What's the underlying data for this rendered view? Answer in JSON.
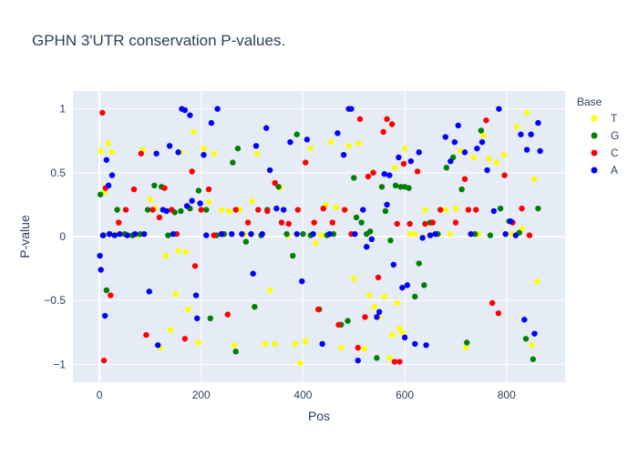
{
  "chart_data": {
    "type": "scatter",
    "title": "GPHN 3'UTR conservation P-values.",
    "xlabel": "Pos",
    "ylabel": "P-value",
    "xlim": [
      -52,
      915
    ],
    "ylim": [
      -1.14,
      1.14
    ],
    "x_ticks": [
      0,
      200,
      400,
      600,
      800
    ],
    "y_ticks": [
      -1,
      -0.5,
      0,
      0.5,
      1
    ],
    "x_tick_labels": [
      "0",
      "200",
      "400",
      "600",
      "800"
    ],
    "y_tick_labels": [
      "−1",
      "−0.5",
      "0",
      "0.5",
      "1"
    ],
    "grid": true,
    "legend_title": "Base",
    "legend_position": "top-right",
    "series": [
      {
        "name": "T",
        "color": "#ffff00",
        "points": [
          [
            3,
            0.67
          ],
          [
            10,
            0.35
          ],
          [
            18,
            0.73
          ],
          [
            24,
            0.66
          ],
          [
            32,
            0.02
          ],
          [
            45,
            0.02
          ],
          [
            60,
            0.01
          ],
          [
            75,
            0.01
          ],
          [
            85,
            0.68
          ],
          [
            100,
            0.29
          ],
          [
            110,
            0.22
          ],
          [
            120,
            -0.87
          ],
          [
            130,
            -0.15
          ],
          [
            140,
            -0.73
          ],
          [
            150,
            -0.45
          ],
          [
            155,
            -0.11
          ],
          [
            160,
            0.66
          ],
          [
            170,
            -0.12
          ],
          [
            175,
            -0.57
          ],
          [
            185,
            0.82
          ],
          [
            195,
            -0.83
          ],
          [
            205,
            0.69
          ],
          [
            215,
            0.27
          ],
          [
            225,
            0.65
          ],
          [
            240,
            0.21
          ],
          [
            255,
            0.2
          ],
          [
            265,
            -0.85
          ],
          [
            275,
            0.21
          ],
          [
            285,
            0.02
          ],
          [
            300,
            0.28
          ],
          [
            310,
            0.65
          ],
          [
            325,
            -0.84
          ],
          [
            335,
            -0.42
          ],
          [
            345,
            -0.84
          ],
          [
            355,
            0.38
          ],
          [
            370,
            0.01
          ],
          [
            385,
            -0.84
          ],
          [
            395,
            -0.99
          ],
          [
            405,
            -0.82
          ],
          [
            415,
            0.69
          ],
          [
            425,
            -0.05
          ],
          [
            435,
            0.01
          ],
          [
            445,
            0.25
          ],
          [
            455,
            0.74
          ],
          [
            465,
            0.23
          ],
          [
            475,
            -0.87
          ],
          [
            490,
            0.71
          ],
          [
            500,
            -0.33
          ],
          [
            510,
            0.73
          ],
          [
            520,
            -0.88
          ],
          [
            530,
            -0.46
          ],
          [
            540,
            -0.55
          ],
          [
            550,
            -0.63
          ],
          [
            560,
            -0.47
          ],
          [
            570,
            -0.95
          ],
          [
            575,
            -0.77
          ],
          [
            580,
            0.54
          ],
          [
            585,
            -0.52
          ],
          [
            590,
            -0.72
          ],
          [
            595,
            -0.75
          ],
          [
            600,
            0.69
          ],
          [
            610,
            0.02
          ],
          [
            620,
            0.02
          ],
          [
            640,
            0.21
          ],
          [
            660,
            0.02
          ],
          [
            680,
            0.21
          ],
          [
            690,
            0.02
          ],
          [
            700,
            0.22
          ],
          [
            710,
            0.67
          ],
          [
            720,
            -0.87
          ],
          [
            735,
            0.62
          ],
          [
            745,
            0.02
          ],
          [
            755,
            0.79
          ],
          [
            765,
            0.61
          ],
          [
            780,
            0.58
          ],
          [
            795,
            0.64
          ],
          [
            810,
            0.02
          ],
          [
            820,
            0.86
          ],
          [
            830,
            0.06
          ],
          [
            840,
            0.97
          ],
          [
            850,
            -0.85
          ],
          [
            855,
            0.45
          ],
          [
            860,
            -0.35
          ]
        ]
      },
      {
        "name": "G",
        "color": "#008000",
        "points": [
          [
            2,
            0.33
          ],
          [
            8,
            0.01
          ],
          [
            14,
            -0.42
          ],
          [
            20,
            0.02
          ],
          [
            35,
            0.21
          ],
          [
            50,
            0.02
          ],
          [
            65,
            0.01
          ],
          [
            80,
            0.02
          ],
          [
            95,
            0.21
          ],
          [
            108,
            0.4
          ],
          [
            122,
            0.39
          ],
          [
            135,
            0.01
          ],
          [
            148,
            0.19
          ],
          [
            160,
            0.2
          ],
          [
            178,
            0.22
          ],
          [
            195,
            0.36
          ],
          [
            210,
            0.21
          ],
          [
            218,
            -0.64
          ],
          [
            230,
            0.01
          ],
          [
            245,
            0.02
          ],
          [
            262,
            0.58
          ],
          [
            268,
            -0.9
          ],
          [
            272,
            0.69
          ],
          [
            288,
            -0.04
          ],
          [
            305,
            -0.55
          ],
          [
            318,
            0.01
          ],
          [
            330,
            0.21
          ],
          [
            352,
            0.39
          ],
          [
            368,
            0.02
          ],
          [
            380,
            -0.15
          ],
          [
            388,
            0.8
          ],
          [
            400,
            0.02
          ],
          [
            415,
            0.01
          ],
          [
            432,
            -0.57
          ],
          [
            447,
            0.01
          ],
          [
            460,
            0.02
          ],
          [
            475,
            -0.69
          ],
          [
            488,
            -0.66
          ],
          [
            500,
            0.46
          ],
          [
            505,
            0.15
          ],
          [
            515,
            0.11
          ],
          [
            525,
            0.02
          ],
          [
            532,
            0.04
          ],
          [
            545,
            -0.95
          ],
          [
            555,
            0.39
          ],
          [
            562,
            0.2
          ],
          [
            572,
            -0.03
          ],
          [
            582,
            0.4
          ],
          [
            592,
            0.39
          ],
          [
            600,
            0.39
          ],
          [
            608,
            0.38
          ],
          [
            620,
            -0.47
          ],
          [
            628,
            -0.21
          ],
          [
            638,
            -0.38
          ],
          [
            650,
            0.11
          ],
          [
            665,
            0.02
          ],
          [
            682,
            0.54
          ],
          [
            695,
            0.62
          ],
          [
            712,
            0.37
          ],
          [
            722,
            -0.83
          ],
          [
            738,
            0.02
          ],
          [
            750,
            0.83
          ],
          [
            768,
            0.01
          ],
          [
            788,
            0.22
          ],
          [
            805,
            0.12
          ],
          [
            825,
            0.03
          ],
          [
            838,
            -0.8
          ],
          [
            852,
            -0.96
          ],
          [
            862,
            0.22
          ]
        ]
      },
      {
        "name": "C",
        "color": "#ff0000",
        "points": [
          [
            6,
            0.97
          ],
          [
            9,
            -0.97
          ],
          [
            12,
            0.38
          ],
          [
            22,
            -0.46
          ],
          [
            38,
            0.11
          ],
          [
            52,
            0.21
          ],
          [
            68,
            0.37
          ],
          [
            82,
            0.65
          ],
          [
            92,
            -0.77
          ],
          [
            105,
            0.21
          ],
          [
            118,
            0.15
          ],
          [
            128,
            0.38
          ],
          [
            142,
            0.21
          ],
          [
            152,
            0.02
          ],
          [
            168,
            -0.8
          ],
          [
            182,
            0.51
          ],
          [
            188,
            -0.23
          ],
          [
            200,
            0.21
          ],
          [
            215,
            0.37
          ],
          [
            225,
            0.01
          ],
          [
            240,
            0.02
          ],
          [
            252,
            -0.61
          ],
          [
            268,
            0.21
          ],
          [
            292,
            0.11
          ],
          [
            312,
            0.21
          ],
          [
            330,
            0.2
          ],
          [
            345,
            0.42
          ],
          [
            358,
            0.11
          ],
          [
            372,
            0.1
          ],
          [
            390,
            0.21
          ],
          [
            405,
            0.58
          ],
          [
            422,
            0.11
          ],
          [
            430,
            -0.57
          ],
          [
            440,
            0.22
          ],
          [
            458,
            0.11
          ],
          [
            470,
            -0.69
          ],
          [
            482,
            0.21
          ],
          [
            495,
            0.02
          ],
          [
            508,
            -0.87
          ],
          [
            512,
            0.92
          ],
          [
            522,
            -0.63
          ],
          [
            528,
            0.47
          ],
          [
            538,
            0.5
          ],
          [
            548,
            -0.32
          ],
          [
            558,
            0.82
          ],
          [
            565,
            0.92
          ],
          [
            575,
            0.88
          ],
          [
            580,
            -0.98
          ],
          [
            585,
            0.1
          ],
          [
            590,
            -0.98
          ],
          [
            598,
            0.57
          ],
          [
            610,
            0.1
          ],
          [
            625,
            0.51
          ],
          [
            640,
            0.1
          ],
          [
            655,
            0.11
          ],
          [
            670,
            0.21
          ],
          [
            700,
            0.11
          ],
          [
            718,
            0.45
          ],
          [
            725,
            0.21
          ],
          [
            740,
            0.21
          ],
          [
            760,
            0.91
          ],
          [
            772,
            -0.52
          ],
          [
            784,
            -0.6
          ],
          [
            796,
            0.48
          ],
          [
            812,
            0.11
          ],
          [
            830,
            0.22
          ],
          [
            845,
            0.01
          ]
        ]
      },
      {
        "name": "A",
        "color": "#0000ff",
        "points": [
          [
            1,
            -0.15
          ],
          [
            3,
            -0.26
          ],
          [
            7,
            0.01
          ],
          [
            11,
            -0.62
          ],
          [
            14,
            0.6
          ],
          [
            18,
            0.4
          ],
          [
            20,
            0.02
          ],
          [
            25,
            0.48
          ],
          [
            30,
            0.01
          ],
          [
            40,
            0.02
          ],
          [
            55,
            0.01
          ],
          [
            70,
            0.02
          ],
          [
            88,
            0.02
          ],
          [
            98,
            -0.43
          ],
          [
            112,
            0.65
          ],
          [
            115,
            -0.85
          ],
          [
            125,
            0.21
          ],
          [
            132,
            0.2
          ],
          [
            138,
            0.71
          ],
          [
            145,
            0.02
          ],
          [
            155,
            0.66
          ],
          [
            162,
            1.0
          ],
          [
            168,
            0.99
          ],
          [
            172,
            0.24
          ],
          [
            178,
            0.95
          ],
          [
            182,
            0.28
          ],
          [
            190,
            -0.46
          ],
          [
            192,
            -0.64
          ],
          [
            198,
            0.26
          ],
          [
            205,
            0.64
          ],
          [
            210,
            0.01
          ],
          [
            220,
            0.89
          ],
          [
            232,
            1.0
          ],
          [
            240,
            0.02
          ],
          [
            260,
            0.02
          ],
          [
            280,
            0.02
          ],
          [
            298,
            0.02
          ],
          [
            302,
            -0.29
          ],
          [
            308,
            0.71
          ],
          [
            320,
            0.02
          ],
          [
            328,
            0.85
          ],
          [
            335,
            0.52
          ],
          [
            348,
            0.22
          ],
          [
            362,
            0.21
          ],
          [
            375,
            0.74
          ],
          [
            388,
            0.02
          ],
          [
            398,
            -0.35
          ],
          [
            408,
            0.76
          ],
          [
            420,
            0.02
          ],
          [
            438,
            -0.84
          ],
          [
            452,
            0.02
          ],
          [
            468,
            0.81
          ],
          [
            480,
            0.64
          ],
          [
            490,
            1.0
          ],
          [
            495,
            1.0
          ],
          [
            502,
            0.02
          ],
          [
            508,
            -0.97
          ],
          [
            518,
            0.21
          ],
          [
            525,
            -0.08
          ],
          [
            535,
            -0.02
          ],
          [
            545,
            -0.63
          ],
          [
            550,
            -0.59
          ],
          [
            560,
            0.49
          ],
          [
            565,
            0.25
          ],
          [
            570,
            0.48
          ],
          [
            578,
            -0.22
          ],
          [
            588,
            0.62
          ],
          [
            595,
            -0.4
          ],
          [
            600,
            -0.79
          ],
          [
            605,
            -0.38
          ],
          [
            612,
            0.59
          ],
          [
            620,
            -0.84
          ],
          [
            628,
            0.66
          ],
          [
            635,
            -0.01
          ],
          [
            642,
            -0.85
          ],
          [
            650,
            0.01
          ],
          [
            660,
            0.02
          ],
          [
            680,
            0.78
          ],
          [
            690,
            0.59
          ],
          [
            698,
            0.74
          ],
          [
            705,
            0.87
          ],
          [
            718,
            0.66
          ],
          [
            730,
            0.02
          ],
          [
            742,
            0.69
          ],
          [
            752,
            0.74
          ],
          [
            762,
            0.52
          ],
          [
            775,
            0.2
          ],
          [
            785,
            1.0
          ],
          [
            798,
            0.02
          ],
          [
            808,
            0.12
          ],
          [
            818,
            0.01
          ],
          [
            828,
            0.8
          ],
          [
            835,
            -0.65
          ],
          [
            840,
            0.68
          ],
          [
            848,
            0.8
          ],
          [
            855,
            -0.76
          ],
          [
            862,
            0.89
          ],
          [
            866,
            0.67
          ]
        ]
      }
    ]
  }
}
